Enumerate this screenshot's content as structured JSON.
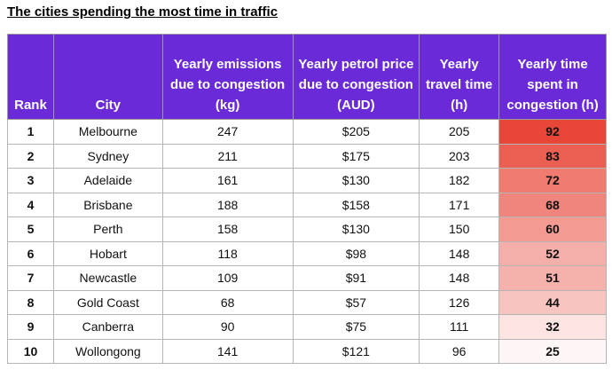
{
  "title": "The cities spending the most time in traffic",
  "table": {
    "headers": [
      "Rank",
      "City",
      "Yearly emissions due to congestion (kg)",
      "Yearly petrol price due to congestion (AUD)",
      "Yearly travel time (h)",
      "Yearly time spent in congestion (h)"
    ],
    "rows": [
      [
        1,
        "Melbourne",
        247,
        "$205",
        205,
        92
      ],
      [
        2,
        "Sydney",
        211,
        "$175",
        203,
        83
      ],
      [
        3,
        "Adelaide",
        161,
        "$130",
        182,
        72
      ],
      [
        4,
        "Brisbane",
        188,
        "$158",
        171,
        68
      ],
      [
        5,
        "Perth",
        158,
        "$130",
        150,
        60
      ],
      [
        6,
        "Hobart",
        118,
        "$98",
        148,
        52
      ],
      [
        7,
        "Newcastle",
        109,
        "$91",
        148,
        51
      ],
      [
        8,
        "Gold Coast",
        68,
        "$57",
        126,
        44
      ],
      [
        9,
        "Canberra",
        90,
        "$75",
        111,
        32
      ],
      [
        10,
        "Wollongong",
        141,
        "$121",
        96,
        25
      ]
    ]
  }
}
